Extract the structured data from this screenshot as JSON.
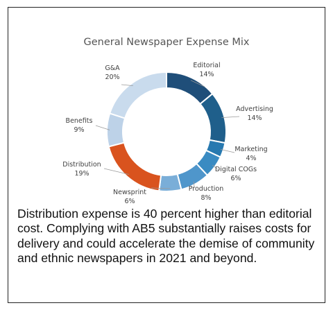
{
  "chart_data": {
    "type": "pie",
    "title": "General Newspaper Expense Mix",
    "donut": true,
    "slices": [
      {
        "label": "Editorial",
        "value": 14,
        "pct_label": "14%",
        "color": "#1f4e79"
      },
      {
        "label": "Advertising",
        "value": 14,
        "pct_label": "14%",
        "color": "#1f5f8b"
      },
      {
        "label": "Marketing",
        "value": 4,
        "pct_label": "4%",
        "color": "#2779b0"
      },
      {
        "label": "Digital COGs",
        "value": 6,
        "pct_label": "6%",
        "color": "#3a8bc2"
      },
      {
        "label": "Production",
        "value": 8,
        "pct_label": "8%",
        "color": "#4f96cb"
      },
      {
        "label": "Newsprint",
        "value": 6,
        "pct_label": "6%",
        "color": "#7aaed8"
      },
      {
        "label": "Distribution",
        "value": 19,
        "pct_label": "19%",
        "color": "#d9531e"
      },
      {
        "label": "Benefits",
        "value": 9,
        "pct_label": "9%",
        "color": "#bdd2e8"
      },
      {
        "label": "G&A",
        "value": 20,
        "pct_label": "20%",
        "color": "#c9dbed"
      }
    ]
  },
  "caption": "Distribution expense is 40 percent higher than editorial cost. Complying with AB5 substantially raises costs for delivery and could accelerate the demise of community and ethnic newspapers in 2021 and beyond."
}
